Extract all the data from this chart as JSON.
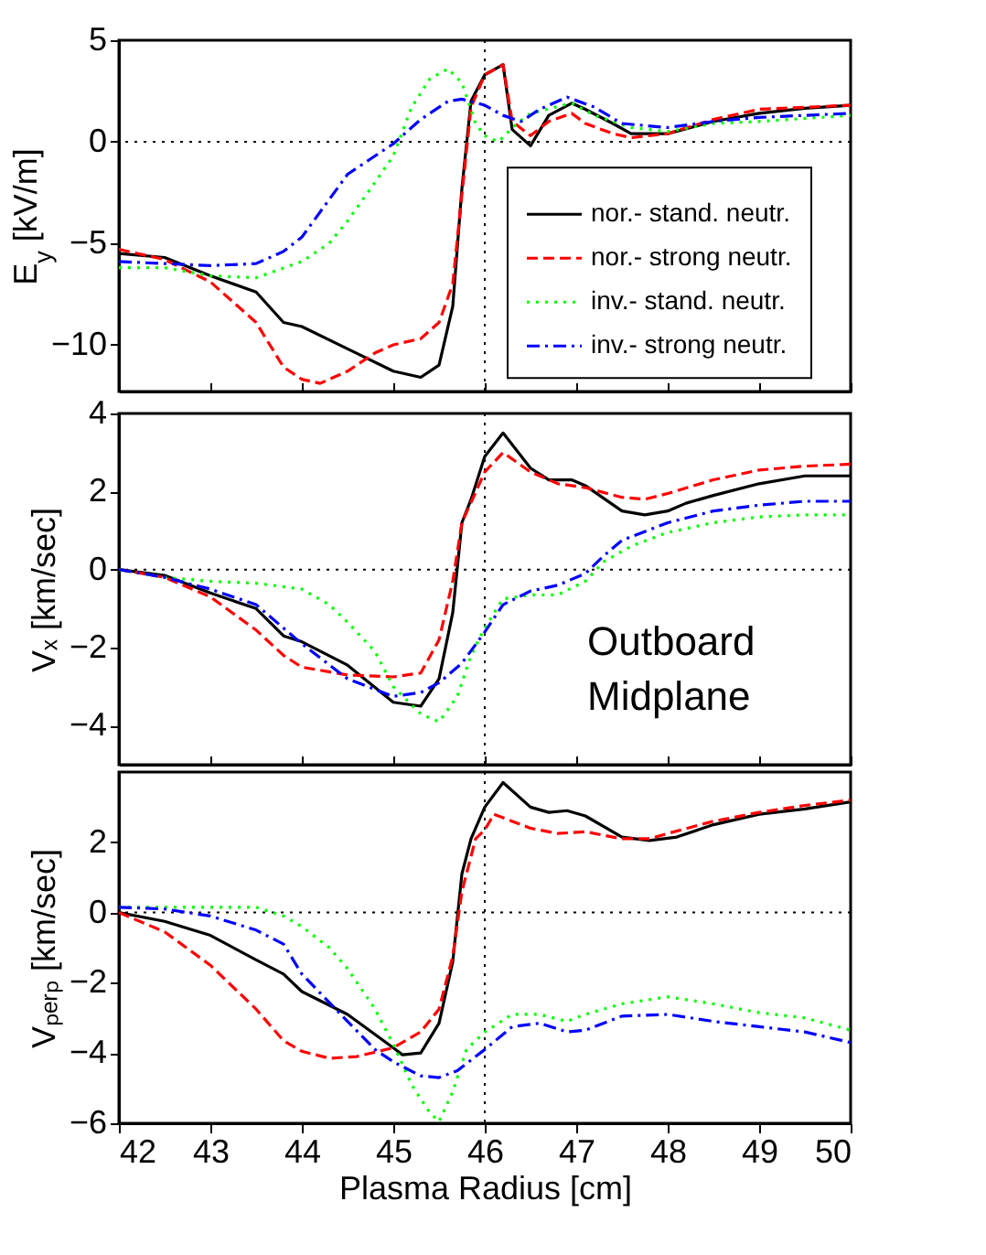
{
  "chart_data": [
    {
      "type": "line",
      "ylabel": "E$_{y}$ [kV/m]",
      "xlim": [
        42,
        50
      ],
      "xticks": [
        42,
        43,
        44,
        45,
        46,
        47,
        48,
        49,
        50
      ],
      "ylim": [
        -12.3,
        5
      ],
      "yticks": [
        -10,
        -5,
        0,
        5
      ],
      "tick_labels": "y",
      "legend": "right",
      "grid": false,
      "ref_lines": [
        {
          "axis": "x",
          "value": 46,
          "color": "#000000",
          "line_style": "dotted"
        },
        {
          "axis": "y",
          "value": 0,
          "color": "#000000",
          "line_style": "dotted"
        }
      ],
      "series": [
        {
          "name": "nor.- stand. neutr.",
          "color": "#000000",
          "line_style": "solid",
          "x": [
            42,
            42.5,
            43,
            43.5,
            43.8,
            44,
            44.5,
            45,
            45.3,
            45.5,
            45.65,
            45.75,
            45.85,
            46,
            46.2,
            46.3,
            46.5,
            46.7,
            46.95,
            47.1,
            47.4,
            47.6,
            48,
            48.5,
            49,
            49.5,
            50
          ],
          "values": [
            -5.5,
            -5.7,
            -6.6,
            -7.4,
            -8.9,
            -9.1,
            -10.2,
            -11.3,
            -11.6,
            -11.0,
            -8.1,
            -2.3,
            2.0,
            3.3,
            3.8,
            0.6,
            -0.2,
            1.3,
            1.9,
            1.6,
            0.9,
            0.4,
            0.4,
            1.0,
            1.4,
            1.65,
            1.8
          ]
        },
        {
          "name": "nor.- strong neutr.",
          "color": "#ff0000",
          "line_style": "dashed",
          "x": [
            42,
            42.5,
            43,
            43.5,
            43.8,
            44,
            44.2,
            44.5,
            44.8,
            45,
            45.3,
            45.5,
            45.65,
            45.75,
            45.85,
            46,
            46.2,
            46.3,
            46.5,
            46.7,
            46.95,
            47.1,
            47.4,
            47.6,
            48,
            48.5,
            49,
            49.5,
            50
          ],
          "values": [
            -5.3,
            -5.8,
            -6.9,
            -8.9,
            -11.1,
            -11.7,
            -11.9,
            -11.3,
            -10.4,
            -10.0,
            -9.7,
            -8.9,
            -7.0,
            -2.6,
            1.7,
            3.3,
            3.8,
            1.0,
            0.3,
            1.0,
            1.4,
            0.9,
            0.4,
            0.2,
            0.4,
            1.1,
            1.6,
            1.7,
            1.8
          ]
        },
        {
          "name": "inv.- stand. neutr.",
          "color": "#00ff00",
          "line_style": "dotted",
          "x": [
            42,
            42.5,
            43,
            43.5,
            44,
            44.3,
            44.5,
            44.8,
            45,
            45.2,
            45.4,
            45.6,
            45.75,
            45.9,
            46,
            46.15,
            46.35,
            46.5,
            46.95,
            47.2,
            47.6,
            48,
            48.5,
            49,
            50
          ],
          "values": [
            -6.2,
            -6.2,
            -6.6,
            -6.7,
            -5.9,
            -5.0,
            -3.9,
            -2.0,
            -0.7,
            1.7,
            3.1,
            3.6,
            2.9,
            0.9,
            0.3,
            0.0,
            0.9,
            1.4,
            1.9,
            1.3,
            0.7,
            0.5,
            0.9,
            1.0,
            1.3
          ]
        },
        {
          "name": "inv.- strong neutr.",
          "color": "#0000ff",
          "line_style": "dashdot",
          "x": [
            42,
            42.5,
            43,
            43.5,
            43.8,
            44,
            44.5,
            45,
            45.3,
            45.6,
            45.75,
            46,
            46.2,
            46.4,
            46.6,
            46.9,
            47.2,
            47.5,
            48,
            48.5,
            49,
            50
          ],
          "values": [
            -5.9,
            -6.0,
            -6.1,
            -6.0,
            -5.4,
            -4.7,
            -1.6,
            -0.1,
            1.1,
            2.0,
            2.1,
            1.8,
            1.3,
            1.0,
            1.6,
            2.2,
            1.7,
            0.9,
            0.7,
            1.0,
            1.2,
            1.4
          ]
        }
      ]
    },
    {
      "type": "line",
      "ylabel": "Vₓ [km/sec]",
      "xlim": [
        42,
        50
      ],
      "xticks": [
        42,
        43,
        44,
        45,
        46,
        47,
        48,
        49,
        50
      ],
      "ylim": [
        -5,
        4
      ],
      "yticks": [
        -4,
        -2,
        0,
        2,
        4
      ],
      "tick_labels": "y",
      "grid": false,
      "annotations": [
        "Outboard Midplane"
      ],
      "ref_lines": [
        {
          "axis": "x",
          "value": 46,
          "color": "#000000",
          "line_style": "dotted"
        },
        {
          "axis": "y",
          "value": 0,
          "color": "#000000",
          "line_style": "dotted"
        }
      ],
      "series": [
        {
          "color": "#000000",
          "line_style": "solid",
          "x": [
            42,
            42.5,
            43,
            43.5,
            43.8,
            44,
            44.5,
            45,
            45.3,
            45.5,
            45.65,
            45.75,
            45.85,
            46,
            46.2,
            46.5,
            46.7,
            46.95,
            47.1,
            47.5,
            47.75,
            48,
            48.2,
            48.5,
            49,
            49.5,
            50
          ],
          "values": [
            0,
            -0.15,
            -0.6,
            -1.0,
            -1.7,
            -1.85,
            -2.45,
            -3.4,
            -3.5,
            -2.8,
            -1.1,
            1.2,
            1.8,
            2.9,
            3.5,
            2.6,
            2.3,
            2.3,
            2.15,
            1.5,
            1.4,
            1.5,
            1.7,
            1.9,
            2.2,
            2.4,
            2.4
          ]
        },
        {
          "color": "#ff0000",
          "line_style": "dashed",
          "x": [
            42,
            42.5,
            43,
            43.5,
            43.8,
            44,
            44.5,
            45,
            45.3,
            45.5,
            45.65,
            45.75,
            46,
            46.2,
            46.5,
            46.8,
            47.1,
            47.5,
            47.75,
            48,
            48.5,
            49,
            49.5,
            50
          ],
          "values": [
            0,
            -0.2,
            -0.7,
            -1.55,
            -2.2,
            -2.5,
            -2.7,
            -2.75,
            -2.65,
            -1.8,
            -0.3,
            1.2,
            2.5,
            3.0,
            2.5,
            2.2,
            2.1,
            1.85,
            1.8,
            1.95,
            2.3,
            2.55,
            2.65,
            2.7
          ]
        },
        {
          "color": "#00ff00",
          "line_style": "dotted",
          "x": [
            42,
            42.5,
            43,
            43.5,
            44,
            44.3,
            44.5,
            44.8,
            45,
            45.3,
            45.5,
            45.7,
            45.85,
            46,
            46.2,
            46.5,
            46.8,
            47.1,
            47.3,
            47.6,
            48,
            48.5,
            49,
            49.5,
            50
          ],
          "values": [
            0,
            -0.2,
            -0.3,
            -0.35,
            -0.5,
            -0.9,
            -1.35,
            -2.1,
            -3.0,
            -3.7,
            -3.9,
            -3.25,
            -2.2,
            -1.5,
            -0.75,
            -0.65,
            -0.65,
            -0.3,
            0.2,
            0.6,
            0.95,
            1.2,
            1.35,
            1.4,
            1.4
          ]
        },
        {
          "color": "#0000ff",
          "line_style": "dashdot",
          "x": [
            42,
            42.5,
            43,
            43.5,
            43.8,
            44,
            44.5,
            45,
            45.3,
            45.5,
            45.75,
            46,
            46.2,
            46.5,
            46.8,
            47.1,
            47.3,
            47.5,
            48,
            48.5,
            49,
            49.5,
            50
          ],
          "values": [
            0,
            -0.2,
            -0.5,
            -0.9,
            -1.5,
            -1.9,
            -2.8,
            -3.25,
            -3.15,
            -2.9,
            -2.4,
            -1.6,
            -0.9,
            -0.55,
            -0.4,
            -0.1,
            0.35,
            0.75,
            1.2,
            1.5,
            1.65,
            1.75,
            1.75
          ]
        }
      ]
    },
    {
      "type": "line",
      "xlabel": "Plasma Radius [cm]",
      "ylabel": "Vₚₑᵣₚ [km/sec]",
      "xlim": [
        42,
        50
      ],
      "xticks": [
        42,
        43,
        44,
        45,
        46,
        47,
        48,
        49,
        50
      ],
      "ylim": [
        -6,
        4
      ],
      "yticks": [
        -6,
        -4,
        -2,
        0,
        2
      ],
      "grid": false,
      "ref_lines": [
        {
          "axis": "x",
          "value": 46,
          "color": "#000000",
          "line_style": "dotted"
        },
        {
          "axis": "y",
          "value": 0,
          "color": "#000000",
          "line_style": "dotted"
        }
      ],
      "series": [
        {
          "color": "#000000",
          "line_style": "solid",
          "x": [
            42,
            42.5,
            43,
            43.5,
            43.8,
            44,
            44.5,
            45,
            45.1,
            45.3,
            45.5,
            45.65,
            45.75,
            45.85,
            46,
            46.2,
            46.5,
            46.7,
            46.9,
            47.1,
            47.5,
            47.8,
            48.1,
            48.5,
            49,
            49.5,
            50
          ],
          "values": [
            0,
            -0.25,
            -0.65,
            -1.35,
            -1.75,
            -2.25,
            -2.9,
            -3.85,
            -4.05,
            -4.0,
            -3.15,
            -1.4,
            1.1,
            2.1,
            3.0,
            3.7,
            3.0,
            2.85,
            2.9,
            2.75,
            2.15,
            2.05,
            2.15,
            2.5,
            2.8,
            2.95,
            3.15
          ]
        },
        {
          "color": "#ff0000",
          "line_style": "dashed",
          "x": [
            42,
            42.5,
            43,
            43.5,
            43.8,
            44,
            44.3,
            44.6,
            45,
            45.3,
            45.5,
            45.65,
            45.75,
            45.9,
            46,
            46.1,
            46.5,
            46.8,
            47.1,
            47.5,
            47.8,
            48,
            48.5,
            49,
            49.5,
            50
          ],
          "values": [
            0,
            -0.55,
            -1.5,
            -2.75,
            -3.65,
            -3.95,
            -4.15,
            -4.1,
            -3.85,
            -3.4,
            -2.75,
            -1.25,
            0.6,
            2.1,
            2.35,
            2.8,
            2.4,
            2.25,
            2.3,
            2.1,
            2.1,
            2.25,
            2.6,
            2.85,
            3.05,
            3.2
          ]
        },
        {
          "color": "#00ff00",
          "line_style": "dotted",
          "x": [
            42,
            42.5,
            43,
            43.5,
            43.8,
            44,
            44.3,
            44.5,
            44.8,
            45,
            45.2,
            45.4,
            45.5,
            45.65,
            45.8,
            46,
            46.3,
            46.6,
            46.9,
            47.1,
            47.5,
            48,
            48.5,
            49,
            49.5,
            50
          ],
          "values": [
            0.15,
            0.15,
            0.15,
            0.15,
            -0.1,
            -0.4,
            -1.0,
            -1.6,
            -2.75,
            -3.75,
            -4.9,
            -5.7,
            -5.95,
            -5.1,
            -3.9,
            -3.4,
            -2.9,
            -2.9,
            -3.1,
            -2.9,
            -2.6,
            -2.4,
            -2.6,
            -2.85,
            -3.0,
            -3.35
          ]
        },
        {
          "color": "#0000ff",
          "line_style": "dashdot",
          "x": [
            42,
            42.5,
            43,
            43.5,
            43.8,
            44,
            44.5,
            44.8,
            45,
            45.3,
            45.5,
            45.7,
            46,
            46.3,
            46.6,
            46.9,
            47.1,
            47.5,
            48,
            48.5,
            49,
            49.5,
            50
          ],
          "values": [
            0.15,
            0.1,
            -0.1,
            -0.5,
            -0.9,
            -1.75,
            -3.1,
            -3.9,
            -4.25,
            -4.65,
            -4.7,
            -4.5,
            -3.9,
            -3.25,
            -3.15,
            -3.4,
            -3.35,
            -2.95,
            -2.9,
            -3.1,
            -3.25,
            -3.4,
            -3.7
          ]
        }
      ]
    }
  ]
}
